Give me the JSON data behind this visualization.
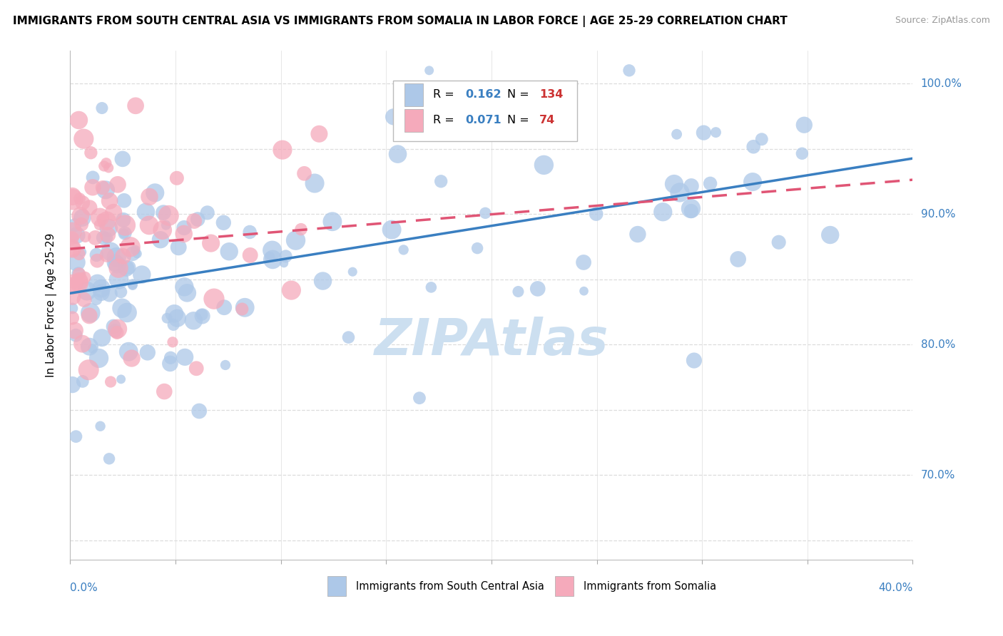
{
  "title": "IMMIGRANTS FROM SOUTH CENTRAL ASIA VS IMMIGRANTS FROM SOMALIA IN LABOR FORCE | AGE 25-29 CORRELATION CHART",
  "source": "Source: ZipAtlas.com",
  "ylabel": "In Labor Force | Age 25-29",
  "y_tick_positions": [
    0.7,
    0.8,
    0.9,
    1.0
  ],
  "y_tick_labels": [
    "70.0%",
    "80.0%",
    "90.0%",
    "100.0%"
  ],
  "x_min": 0.0,
  "x_max": 0.4,
  "y_min": 0.635,
  "y_max": 1.025,
  "blue_R": 0.162,
  "blue_N": 134,
  "pink_R": 0.071,
  "pink_N": 74,
  "blue_color": "#adc8e8",
  "pink_color": "#f5aabb",
  "blue_line_color": "#3a7fc1",
  "pink_line_color": "#e05575",
  "legend_R_color": "#3a7fc1",
  "legend_N_color": "#cc3333",
  "tick_color": "#3a7fc1",
  "watermark_color": "#ccdff0",
  "grid_color": "#dddddd"
}
